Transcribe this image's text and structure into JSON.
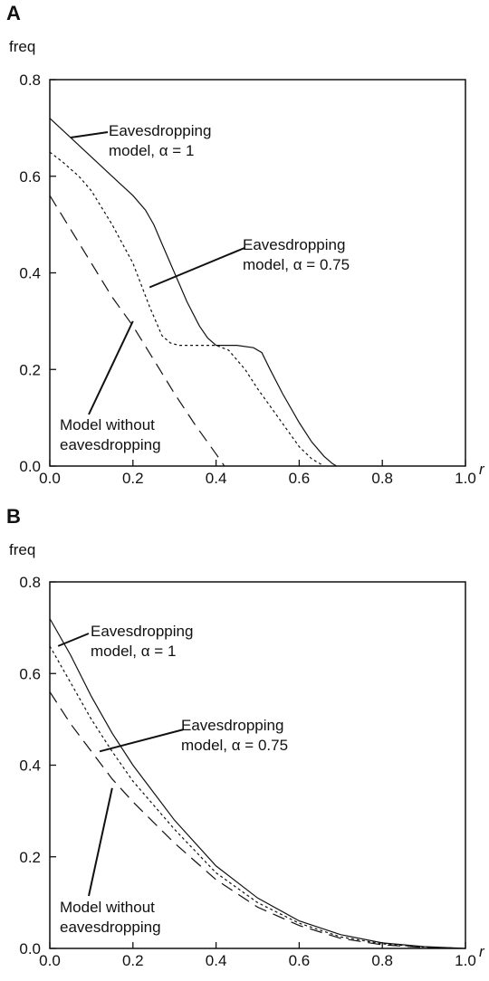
{
  "chart_data": [
    {
      "panel": "A",
      "type": "line",
      "ylabel": "freq",
      "xlabel": "r",
      "xlim": [
        0,
        1
      ],
      "ylim": [
        0,
        0.8
      ],
      "x_ticks": [
        "0.0",
        "0.2",
        "0.4",
        "0.6",
        "0.8",
        "1.0"
      ],
      "y_ticks": [
        "0.0",
        "0.2",
        "0.4",
        "0.6",
        "0.8"
      ],
      "grid": false,
      "series": [
        {
          "style": "solid",
          "points": [
            [
              0,
              0.72
            ],
            [
              0.05,
              0.68
            ],
            [
              0.1,
              0.64
            ],
            [
              0.15,
              0.6
            ],
            [
              0.2,
              0.56
            ],
            [
              0.23,
              0.53
            ],
            [
              0.25,
              0.5
            ],
            [
              0.27,
              0.46
            ],
            [
              0.3,
              0.4
            ],
            [
              0.33,
              0.34
            ],
            [
              0.36,
              0.29
            ],
            [
              0.38,
              0.265
            ],
            [
              0.4,
              0.25
            ],
            [
              0.45,
              0.25
            ],
            [
              0.49,
              0.245
            ],
            [
              0.51,
              0.235
            ],
            [
              0.53,
              0.2
            ],
            [
              0.56,
              0.15
            ],
            [
              0.6,
              0.09
            ],
            [
              0.63,
              0.05
            ],
            [
              0.66,
              0.02
            ],
            [
              0.68,
              0.005
            ],
            [
              0.69,
              0
            ]
          ]
        },
        {
          "style": "dotted",
          "points": [
            [
              0,
              0.65
            ],
            [
              0.03,
              0.63
            ],
            [
              0.07,
              0.6
            ],
            [
              0.1,
              0.57
            ],
            [
              0.15,
              0.5
            ],
            [
              0.2,
              0.42
            ],
            [
              0.24,
              0.33
            ],
            [
              0.27,
              0.27
            ],
            [
              0.29,
              0.255
            ],
            [
              0.31,
              0.25
            ],
            [
              0.4,
              0.25
            ],
            [
              0.43,
              0.24
            ],
            [
              0.47,
              0.2
            ],
            [
              0.5,
              0.16
            ],
            [
              0.55,
              0.1
            ],
            [
              0.6,
              0.04
            ],
            [
              0.63,
              0.015
            ],
            [
              0.66,
              0
            ]
          ]
        },
        {
          "style": "dashed",
          "points": [
            [
              0,
              0.56
            ],
            [
              0.05,
              0.49
            ],
            [
              0.1,
              0.42
            ],
            [
              0.15,
              0.35
            ],
            [
              0.2,
              0.29
            ],
            [
              0.25,
              0.22
            ],
            [
              0.3,
              0.15
            ],
            [
              0.35,
              0.085
            ],
            [
              0.4,
              0.025
            ],
            [
              0.42,
              0
            ]
          ]
        }
      ],
      "annotations": [
        {
          "lines": [
            "Eavesdropping",
            "model, α = 1"
          ],
          "target": [
            0.05,
            0.68
          ]
        },
        {
          "lines": [
            "Eavesdropping",
            "model, α = 0.75"
          ],
          "target": [
            0.24,
            0.37
          ]
        },
        {
          "lines": [
            "Model without",
            "eavesdropping"
          ],
          "target": [
            0.2,
            0.3
          ]
        }
      ]
    },
    {
      "panel": "B",
      "type": "line",
      "ylabel": "freq",
      "xlabel": "r",
      "xlim": [
        0,
        1
      ],
      "ylim": [
        0,
        0.8
      ],
      "x_ticks": [
        "0.0",
        "0.2",
        "0.4",
        "0.6",
        "0.8",
        "1.0"
      ],
      "y_ticks": [
        "0.0",
        "0.2",
        "0.4",
        "0.6",
        "0.8"
      ],
      "grid": false,
      "series": [
        {
          "style": "solid",
          "points": [
            [
              0,
              0.72
            ],
            [
              0.05,
              0.64
            ],
            [
              0.1,
              0.55
            ],
            [
              0.15,
              0.47
            ],
            [
              0.2,
              0.4
            ],
            [
              0.3,
              0.28
            ],
            [
              0.4,
              0.18
            ],
            [
              0.5,
              0.11
            ],
            [
              0.6,
              0.06
            ],
            [
              0.7,
              0.03
            ],
            [
              0.8,
              0.012
            ],
            [
              0.9,
              0.004
            ],
            [
              1.0,
              0
            ]
          ]
        },
        {
          "style": "dotted",
          "points": [
            [
              0,
              0.66
            ],
            [
              0.05,
              0.58
            ],
            [
              0.1,
              0.5
            ],
            [
              0.15,
              0.43
            ],
            [
              0.2,
              0.365
            ],
            [
              0.3,
              0.26
            ],
            [
              0.4,
              0.165
            ],
            [
              0.5,
              0.1
            ],
            [
              0.6,
              0.055
            ],
            [
              0.7,
              0.025
            ],
            [
              0.8,
              0.01
            ],
            [
              0.9,
              0.003
            ],
            [
              1.0,
              0
            ]
          ]
        },
        {
          "style": "dashed",
          "points": [
            [
              0,
              0.56
            ],
            [
              0.05,
              0.49
            ],
            [
              0.1,
              0.43
            ],
            [
              0.15,
              0.37
            ],
            [
              0.2,
              0.32
            ],
            [
              0.3,
              0.23
            ],
            [
              0.4,
              0.15
            ],
            [
              0.5,
              0.09
            ],
            [
              0.6,
              0.05
            ],
            [
              0.7,
              0.022
            ],
            [
              0.8,
              0.008
            ],
            [
              0.9,
              0.002
            ],
            [
              1.0,
              0
            ]
          ]
        }
      ],
      "annotations": [
        {
          "lines": [
            "Eavesdropping",
            "model, α = 1"
          ],
          "target": [
            0.02,
            0.66
          ]
        },
        {
          "lines": [
            "Eavesdropping",
            "model, α = 0.75"
          ],
          "target": [
            0.12,
            0.43
          ]
        },
        {
          "lines": [
            "Model without",
            "eavesdropping"
          ],
          "target": [
            0.15,
            0.35
          ]
        }
      ]
    }
  ]
}
